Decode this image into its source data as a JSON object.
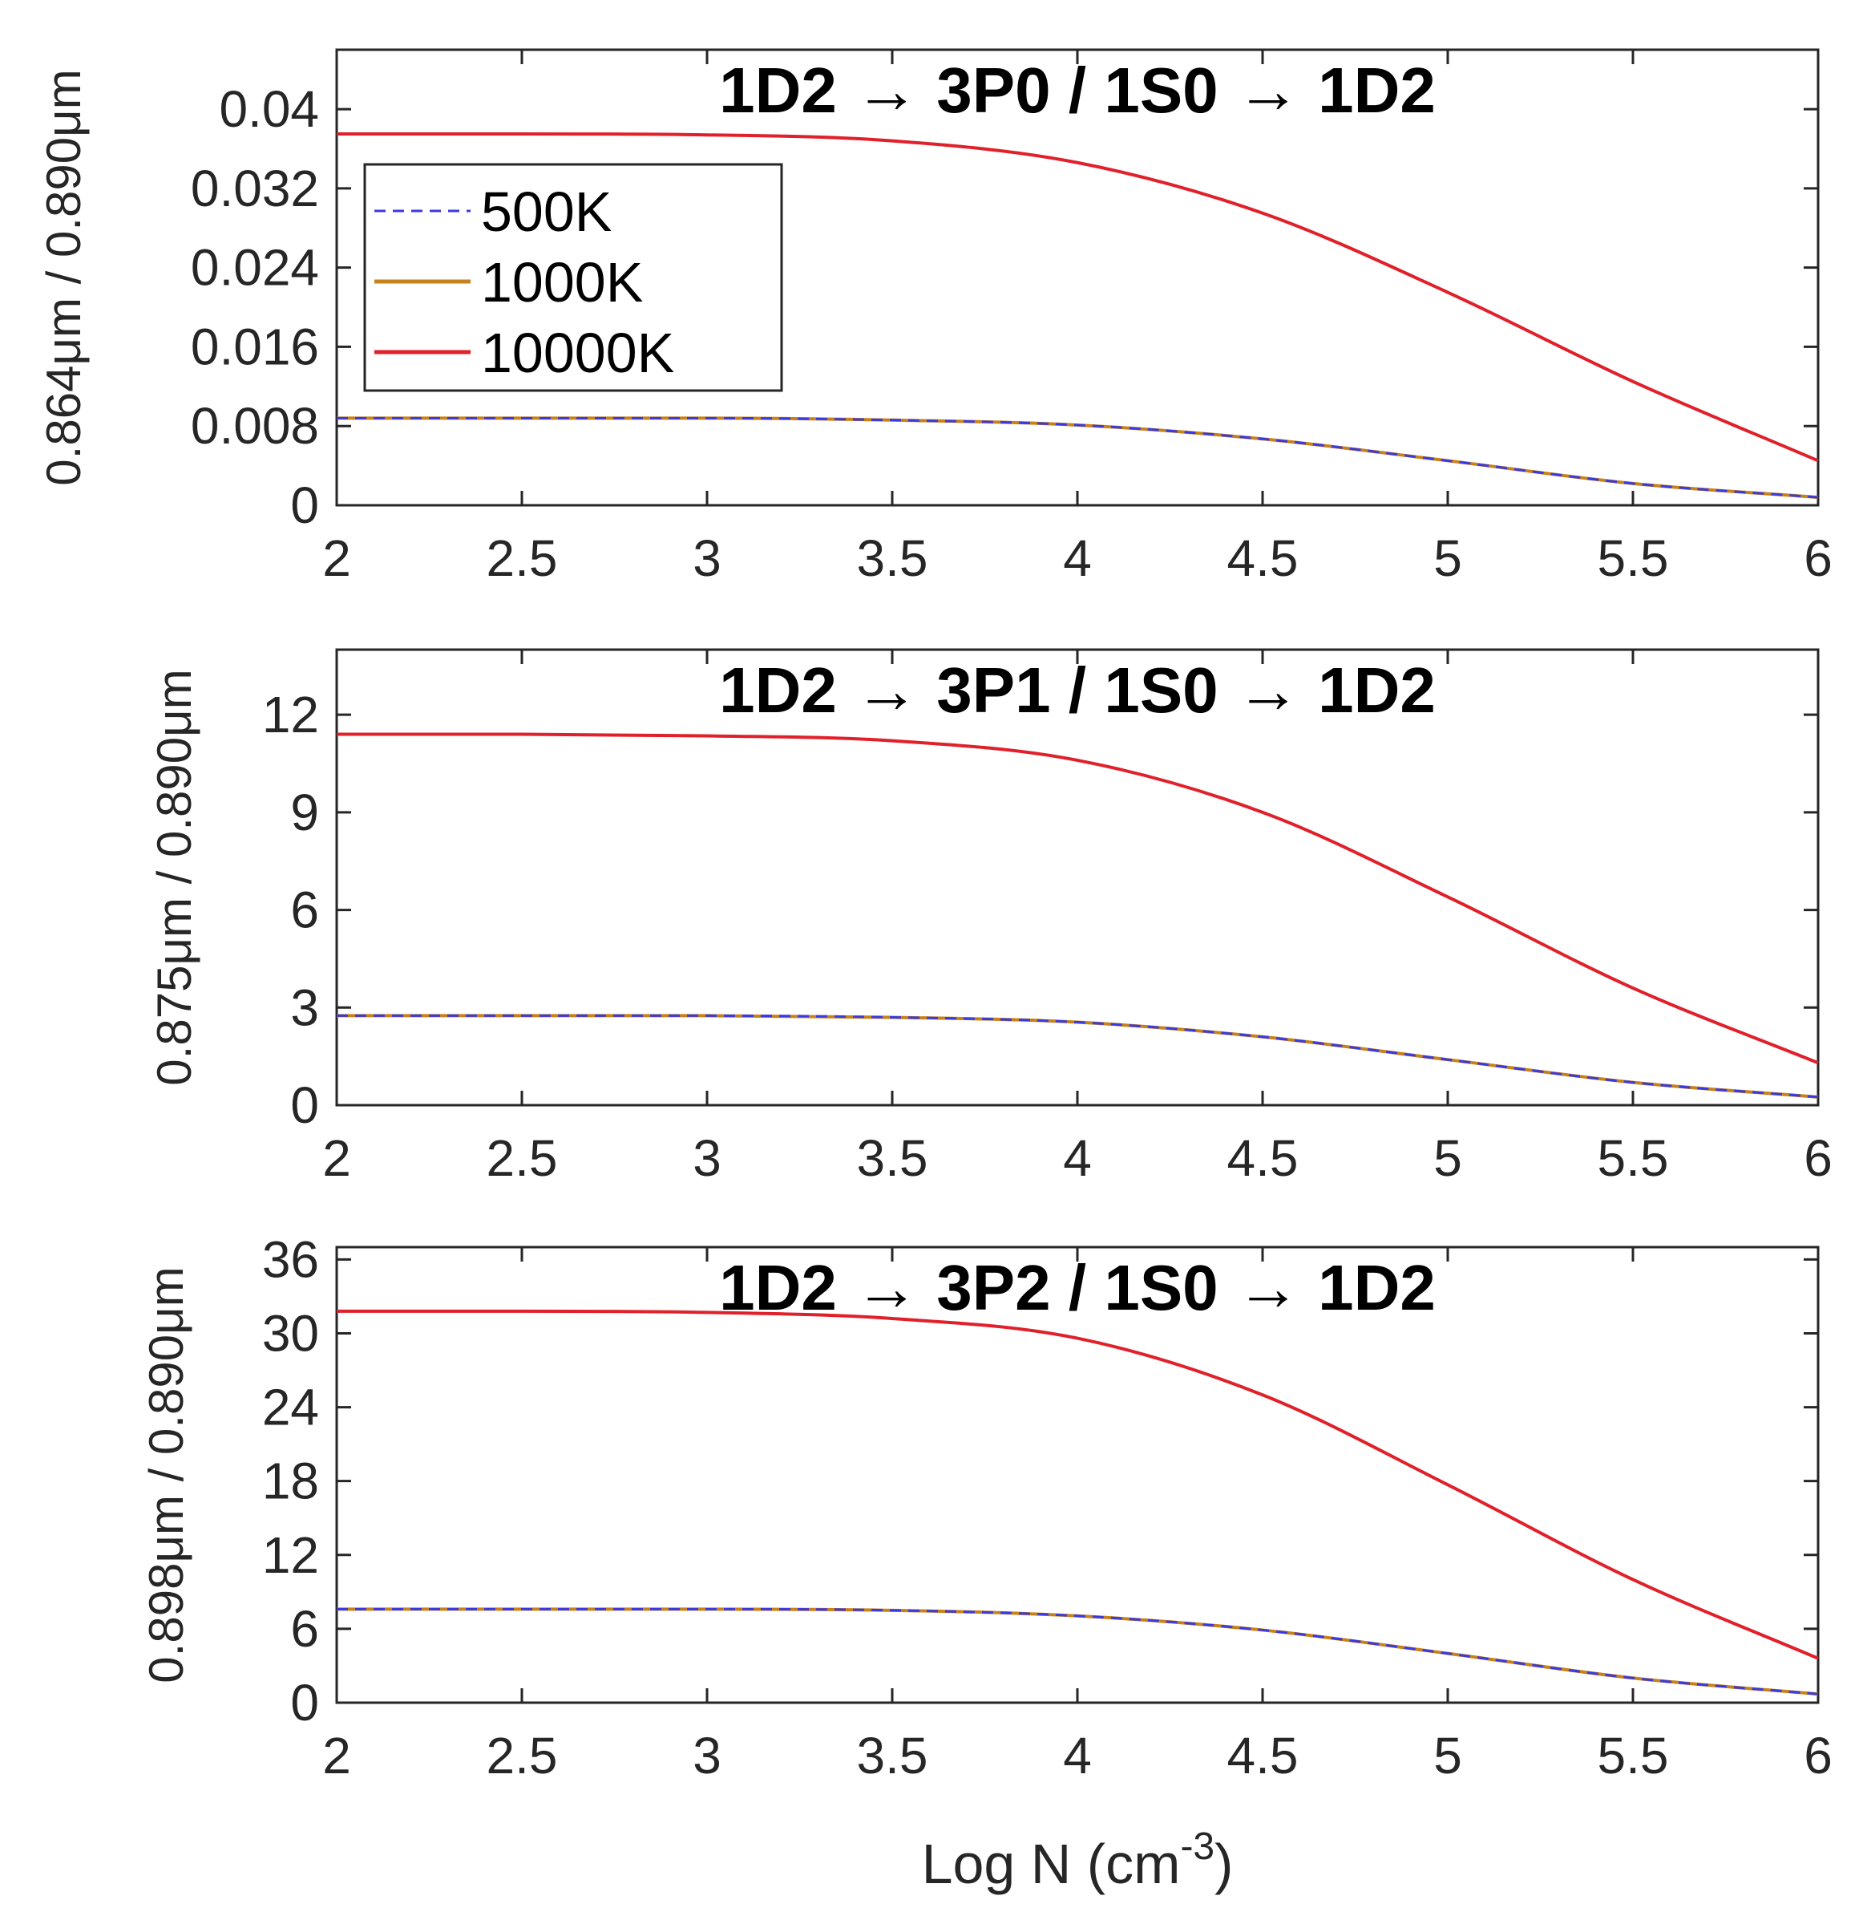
{
  "chart_data": [
    {
      "type": "line",
      "title": "1D2 → 3P0 / 1S0 → 1D2",
      "ylabel": "0.864μm / 0.890μm",
      "xlabel": "",
      "xlim": [
        2,
        6
      ],
      "ylim": [
        0,
        0.046
      ],
      "xticks": [
        "2",
        "2.5",
        "3",
        "3.5",
        "4",
        "4.5",
        "5",
        "5.5",
        "6"
      ],
      "yticks": [
        "0",
        "0.008",
        "0.016",
        "0.024",
        "0.032",
        "0.04"
      ],
      "grid": false,
      "legend": {
        "placement": "upper-left",
        "entries": [
          "500K",
          "1000K",
          "10000K"
        ]
      },
      "x": [
        2,
        2.5,
        3,
        3.5,
        4,
        4.5,
        5,
        5.5,
        6
      ],
      "series": [
        {
          "name": "500K",
          "color": "#3a3adf",
          "style": "dashed",
          "values": [
            0.0088,
            0.0088,
            0.0088,
            0.0086,
            0.0081,
            0.0067,
            0.0045,
            0.0022,
            0.0008
          ]
        },
        {
          "name": "1000K",
          "color": "#c8821c",
          "style": "solid",
          "values": [
            0.0088,
            0.0088,
            0.0088,
            0.0086,
            0.0081,
            0.0067,
            0.0045,
            0.0022,
            0.0008
          ]
        },
        {
          "name": "10000K",
          "color": "#e0202a",
          "style": "solid",
          "values": [
            0.0375,
            0.0375,
            0.0374,
            0.0368,
            0.0346,
            0.0295,
            0.0215,
            0.0125,
            0.0045
          ]
        }
      ]
    },
    {
      "type": "line",
      "title": "1D2 → 3P1 / 1S0 → 1D2",
      "ylabel": "0.875μm / 0.890μm",
      "xlabel": "",
      "xlim": [
        2,
        6
      ],
      "ylim": [
        0,
        14
      ],
      "xticks": [
        "2",
        "2.5",
        "3",
        "3.5",
        "4",
        "4.5",
        "5",
        "5.5",
        "6"
      ],
      "yticks": [
        "0",
        "3",
        "6",
        "9",
        "12"
      ],
      "grid": false,
      "x": [
        2,
        2.5,
        3,
        3.5,
        4,
        4.5,
        5,
        5.5,
        6
      ],
      "series": [
        {
          "name": "500K",
          "color": "#3a3adf",
          "style": "dashed",
          "values": [
            2.75,
            2.75,
            2.75,
            2.7,
            2.55,
            2.1,
            1.4,
            0.7,
            0.25
          ]
        },
        {
          "name": "1000K",
          "color": "#c8821c",
          "style": "solid",
          "values": [
            2.75,
            2.75,
            2.75,
            2.7,
            2.55,
            2.1,
            1.4,
            0.7,
            0.25
          ]
        },
        {
          "name": "10000K",
          "color": "#e0202a",
          "style": "solid",
          "values": [
            11.4,
            11.4,
            11.35,
            11.2,
            10.6,
            9.0,
            6.4,
            3.6,
            1.3
          ]
        }
      ]
    },
    {
      "type": "line",
      "title": "1D2 → 3P2 / 1S0 → 1D2",
      "ylabel": "0.898μm / 0.890μm",
      "xlabel": "Log N (cm",
      "xlabel_sup": "-3",
      "xlabel_tail": ")",
      "xlim": [
        2,
        6
      ],
      "ylim": [
        0,
        37
      ],
      "xticks": [
        "2",
        "2.5",
        "3",
        "3.5",
        "4",
        "4.5",
        "5",
        "5.5",
        "6"
      ],
      "yticks": [
        "0",
        "6",
        "12",
        "18",
        "24",
        "30",
        "36"
      ],
      "grid": false,
      "x": [
        2,
        2.5,
        3,
        3.5,
        4,
        4.5,
        5,
        5.5,
        6
      ],
      "series": [
        {
          "name": "500K",
          "color": "#3a3adf",
          "style": "dashed",
          "values": [
            7.6,
            7.6,
            7.6,
            7.5,
            7.05,
            5.9,
            4.0,
            2.0,
            0.7
          ]
        },
        {
          "name": "1000K",
          "color": "#c8821c",
          "style": "solid",
          "values": [
            7.6,
            7.6,
            7.6,
            7.5,
            7.05,
            5.9,
            4.0,
            2.0,
            0.7
          ]
        },
        {
          "name": "10000K",
          "color": "#e0202a",
          "style": "solid",
          "values": [
            31.8,
            31.8,
            31.7,
            31.2,
            29.6,
            25.0,
            17.7,
            10.0,
            3.6
          ]
        }
      ]
    }
  ]
}
